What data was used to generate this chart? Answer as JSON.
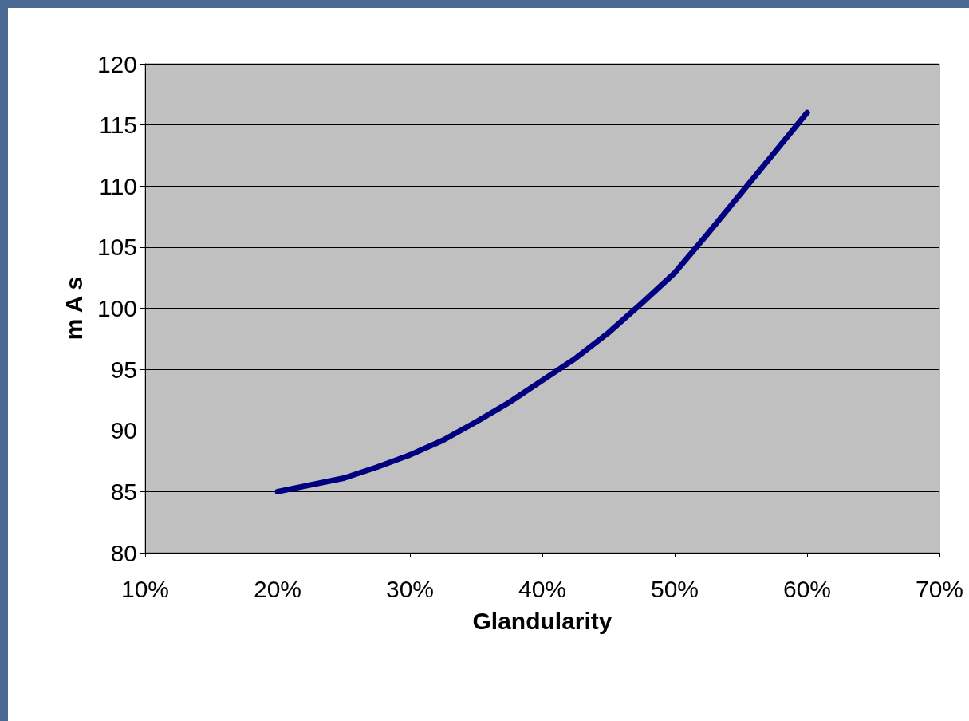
{
  "chart_data": {
    "type": "line",
    "xlabel": "Glandularity",
    "ylabel": "m A s",
    "x": [
      20,
      25,
      27.5,
      30,
      32.5,
      35,
      37.5,
      40,
      42.5,
      45,
      47.5,
      50,
      52.5,
      55,
      57.5,
      60
    ],
    "series": [
      {
        "color": "#000080",
        "values": [
          85.0,
          86.1,
          87.0,
          88.0,
          89.2,
          90.7,
          92.3,
          94.1,
          95.9,
          98.0,
          100.4,
          102.9,
          106.1,
          109.4,
          112.7,
          116.0
        ]
      }
    ],
    "xlim": [
      10,
      70
    ],
    "xticks": [
      {
        "value": 10,
        "label": "10%"
      },
      {
        "value": 20,
        "label": "20%"
      },
      {
        "value": 30,
        "label": "30%"
      },
      {
        "value": 40,
        "label": "40%"
      },
      {
        "value": 50,
        "label": "50%"
      },
      {
        "value": 60,
        "label": "60%"
      },
      {
        "value": 70,
        "label": "70%"
      }
    ],
    "ylim": [
      80,
      120
    ],
    "yticks": [
      80,
      85,
      90,
      95,
      100,
      105,
      110,
      115,
      120
    ],
    "grid": "y",
    "marker": "none",
    "line_style": "solid"
  }
}
